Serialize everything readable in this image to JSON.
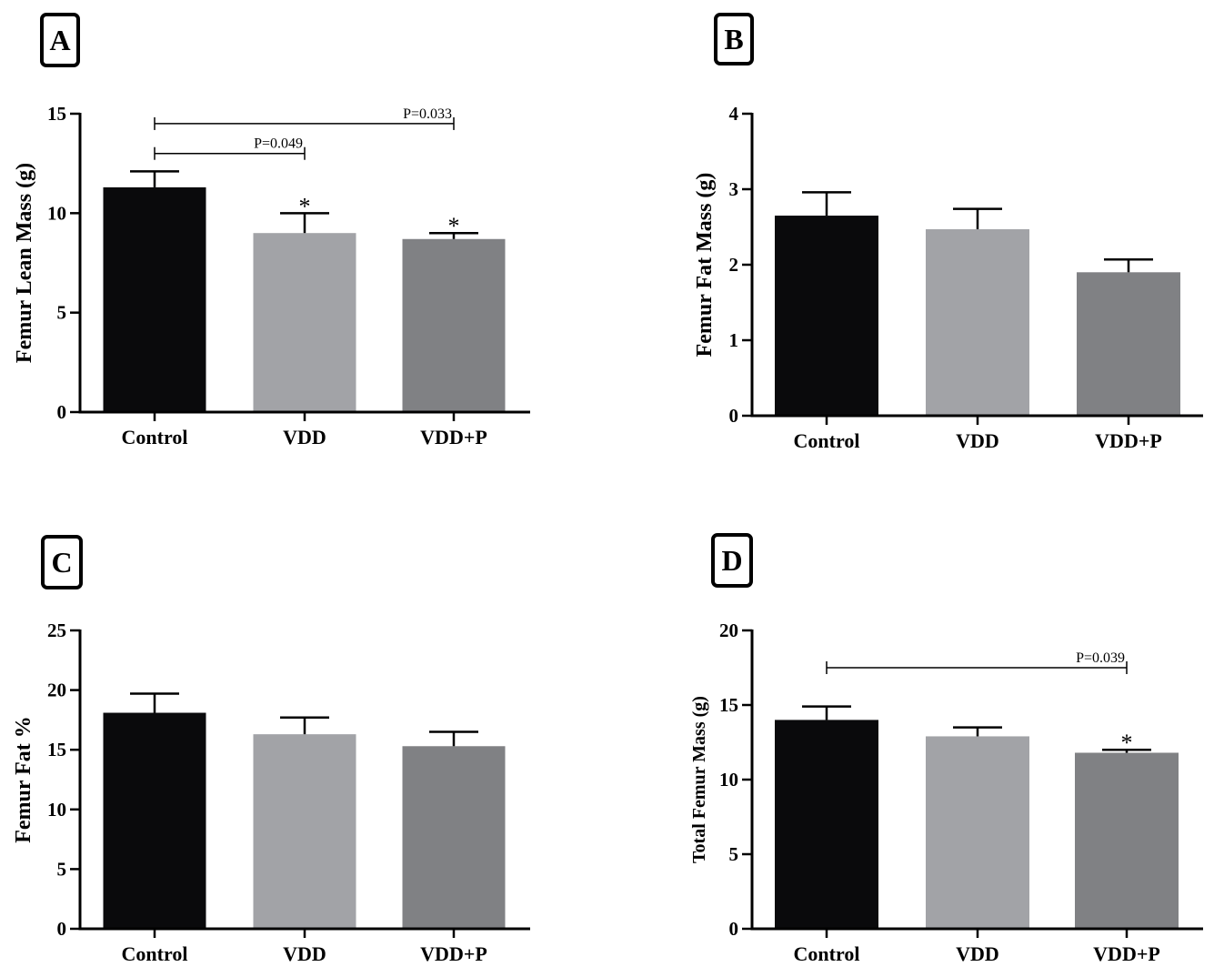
{
  "chart_data": [
    {
      "type": "bar",
      "panel": "A",
      "categories": [
        "Control",
        "VDD",
        "VDD+P"
      ],
      "values": [
        11.3,
        9.0,
        8.7
      ],
      "errors": [
        0.8,
        1.0,
        0.3
      ],
      "ylabel": "Femur Lean Mass (g)",
      "ylim": [
        0,
        15
      ],
      "yticks": [
        "0",
        "5",
        "10",
        "15"
      ],
      "colors": [
        "#0a0a0c",
        "#a2a3a7",
        "#808184"
      ],
      "significance_stars": [
        "",
        "*",
        "*"
      ],
      "comparisons": [
        {
          "from": 0,
          "to": 2,
          "label": "P=0.033",
          "y": 14.5
        },
        {
          "from": 0,
          "to": 1,
          "label": "P=0.049",
          "y": 13.0
        }
      ]
    },
    {
      "type": "bar",
      "panel": "B",
      "categories": [
        "Control",
        "VDD",
        "VDD+P"
      ],
      "values": [
        2.65,
        2.47,
        1.9
      ],
      "errors": [
        0.31,
        0.27,
        0.17
      ],
      "ylabel": "Femur Fat Mass (g)",
      "ylim": [
        0,
        4
      ],
      "yticks": [
        "0",
        "1",
        "2",
        "3",
        "4"
      ],
      "colors": [
        "#0a0a0c",
        "#a2a3a7",
        "#808184"
      ],
      "significance_stars": [
        "",
        "",
        ""
      ],
      "comparisons": []
    },
    {
      "type": "bar",
      "panel": "C",
      "categories": [
        "Control",
        "VDD",
        "VDD+P"
      ],
      "values": [
        18.1,
        16.3,
        15.3
      ],
      "errors": [
        1.6,
        1.4,
        1.2
      ],
      "ylabel": "Femur Fat %",
      "ylim": [
        0,
        25
      ],
      "yticks": [
        "0",
        "5",
        "10",
        "15",
        "20",
        "25"
      ],
      "colors": [
        "#0a0a0c",
        "#a2a3a7",
        "#808184"
      ],
      "significance_stars": [
        "",
        "",
        ""
      ],
      "comparisons": []
    },
    {
      "type": "bar",
      "panel": "D",
      "categories": [
        "Control",
        "VDD",
        "VDD+P"
      ],
      "values": [
        14.0,
        12.9,
        11.8
      ],
      "errors": [
        0.9,
        0.6,
        0.2
      ],
      "ylabel": "Total Femur Mass (g)",
      "ylim": [
        0,
        20
      ],
      "yticks": [
        "0",
        "5",
        "10",
        "15",
        "20"
      ],
      "colors": [
        "#0a0a0c",
        "#a2a3a7",
        "#808184"
      ],
      "significance_stars": [
        "",
        "",
        "*"
      ],
      "comparisons": [
        {
          "from": 0,
          "to": 2,
          "label": "P=0.039",
          "y": 17.5
        }
      ]
    }
  ]
}
